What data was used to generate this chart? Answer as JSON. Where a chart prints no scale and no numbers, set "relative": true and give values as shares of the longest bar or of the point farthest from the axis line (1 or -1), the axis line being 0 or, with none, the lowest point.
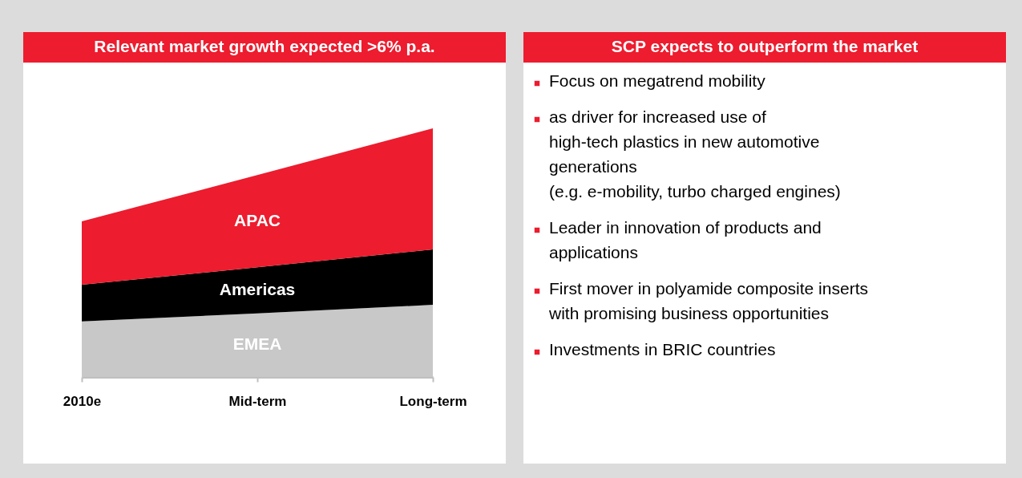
{
  "chart_data": [
    {
      "type": "area",
      "title": "Relevant market growth expected >6% p.a.",
      "stacked": true,
      "relative": true,
      "categories": [
        "2010e",
        "Mid-term",
        "Long-term"
      ],
      "series": [
        {
          "name": "EMEA",
          "color": "#c8c8c8",
          "values": [
            0.223,
            0.256,
            0.29
          ]
        },
        {
          "name": "Americas",
          "color": "#000000",
          "values": [
            0.148,
            0.185,
            0.223
          ]
        },
        {
          "name": "APAC",
          "color": "#ed1c2e",
          "values": [
            0.255,
            0.371,
            0.487
          ]
        }
      ]
    },
    {
      "type": "other",
      "title": "SCP expects to outperform the market",
      "annotations": [
        "Focus on megatrend mobility",
        "as driver for increased use of\nhigh-tech plastics in new automotive\ngenerations\n(e.g. e-mobility, turbo charged engines)",
        "Leader in innovation of products and\napplications",
        "First mover in polyamide composite inserts\nwith promising business opportunities",
        "Investments in BRIC countries"
      ]
    }
  ]
}
